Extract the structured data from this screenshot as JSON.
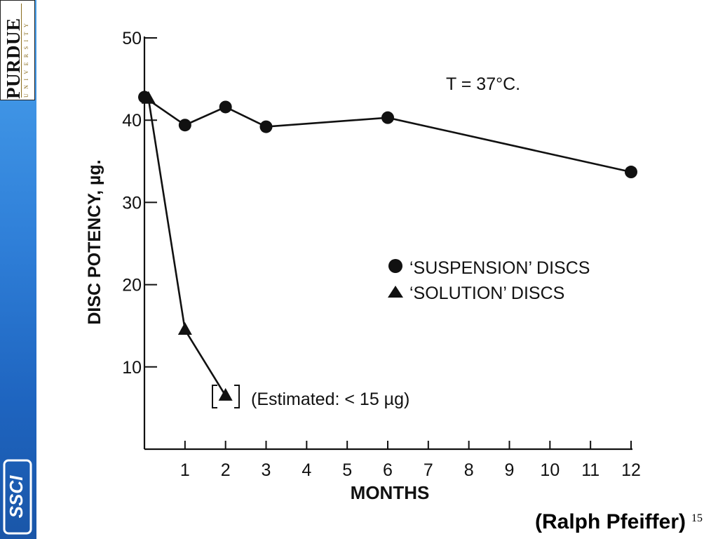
{
  "branding": {
    "purdue_word": "PURDUE",
    "purdue_sub": "UNIVERSITY",
    "side_logo_text": "SSCI"
  },
  "credit": "(Ralph Pfeiffer)",
  "slide_number": "15",
  "chart_data": {
    "type": "line",
    "xlabel": "MONTHS",
    "ylabel": "DISC POTENCY, µg.",
    "annotation": "T = 37°C.",
    "estimated_note": "(Estimated: < 15 µg)",
    "xlim": [
      0,
      12
    ],
    "ylim": [
      0,
      50
    ],
    "x_ticks": [
      "1",
      "2",
      "3",
      "4",
      "5",
      "6",
      "7",
      "8",
      "9",
      "10",
      "11",
      "12"
    ],
    "y_ticks": [
      "10",
      "20",
      "30",
      "40",
      "50"
    ],
    "legend_position": "right-center",
    "series": [
      {
        "name": "‘SUSPENSION’ DISCS",
        "marker": "circle",
        "points": [
          [
            0,
            42.8
          ],
          [
            1,
            39.4
          ],
          [
            2,
            41.6
          ],
          [
            3,
            39.2
          ],
          [
            6,
            40.3
          ],
          [
            12,
            33.7
          ]
        ]
      },
      {
        "name": "‘SOLUTION’ DISCS",
        "marker": "triangle",
        "points": [
          [
            0.1,
            42.6
          ],
          [
            1,
            14.5
          ],
          [
            2,
            6.5
          ]
        ],
        "estimated_points": [
          [
            2,
            6.5
          ]
        ]
      }
    ]
  }
}
